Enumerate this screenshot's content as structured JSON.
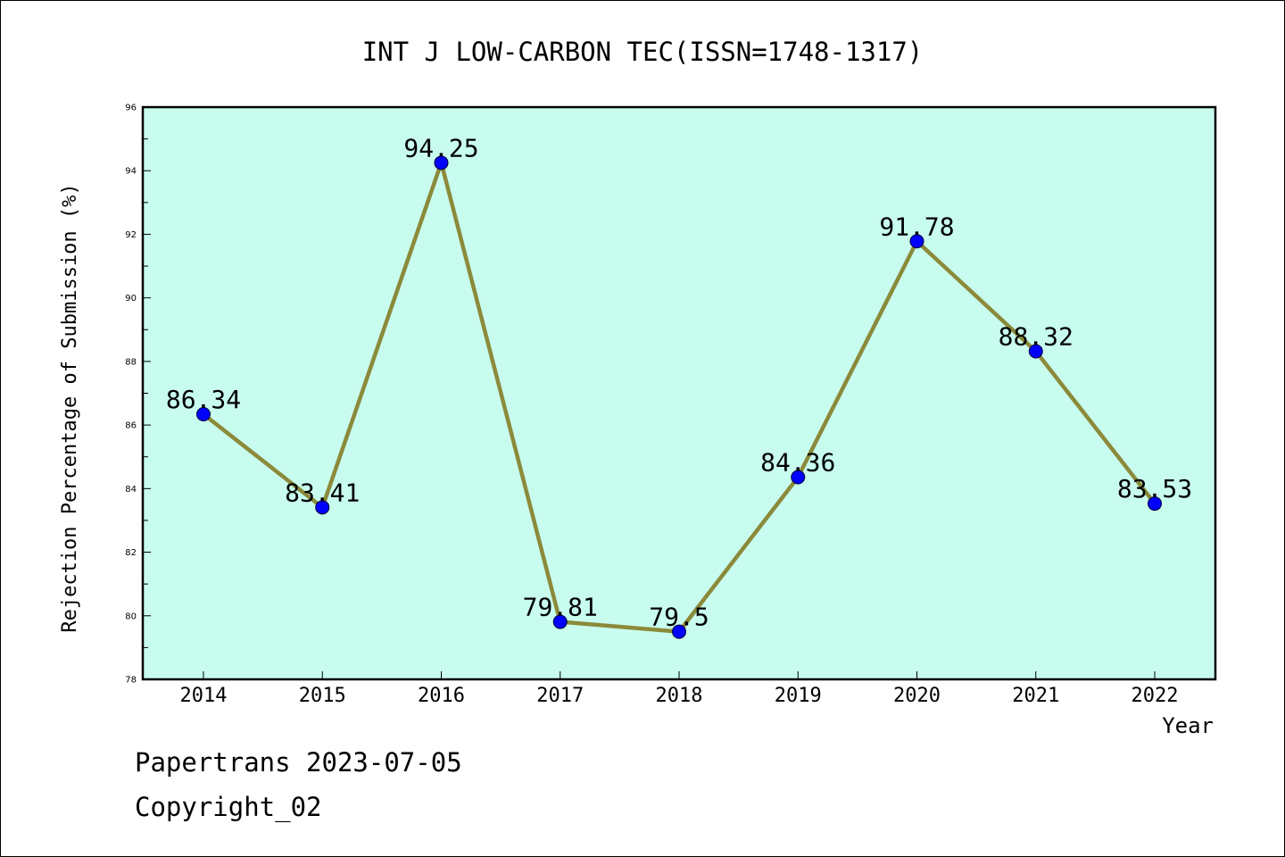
{
  "chart_data": {
    "type": "line",
    "title": "INT J LOW-CARBON TEC(ISSN=1748-1317)",
    "xlabel": "Year",
    "ylabel": "Rejection Percentage of Submission (%)",
    "categories": [
      "2014",
      "2015",
      "2016",
      "2017",
      "2018",
      "2019",
      "2020",
      "2021",
      "2022"
    ],
    "series": [
      {
        "values": [
          86.34,
          83.41,
          94.25,
          79.81,
          79.5,
          84.36,
          91.78,
          88.32,
          83.53
        ],
        "labels": [
          "86.34",
          "83.41",
          "94.25",
          "79.81",
          "79.5",
          "84.36",
          "91.78",
          "88.32",
          "83.53"
        ],
        "line_color": "#8b8a3b",
        "marker_color": "#0000ff"
      }
    ],
    "ylim": [
      78,
      96
    ],
    "yticks": [
      "78",
      "80",
      "82",
      "84",
      "86",
      "88",
      "90",
      "92",
      "94",
      "96"
    ],
    "grid": false,
    "plot_background": "#c8fcee"
  },
  "footer": {
    "date_text": "Papertrans 2023-07-05",
    "copyright_text": "Copyright_02"
  }
}
